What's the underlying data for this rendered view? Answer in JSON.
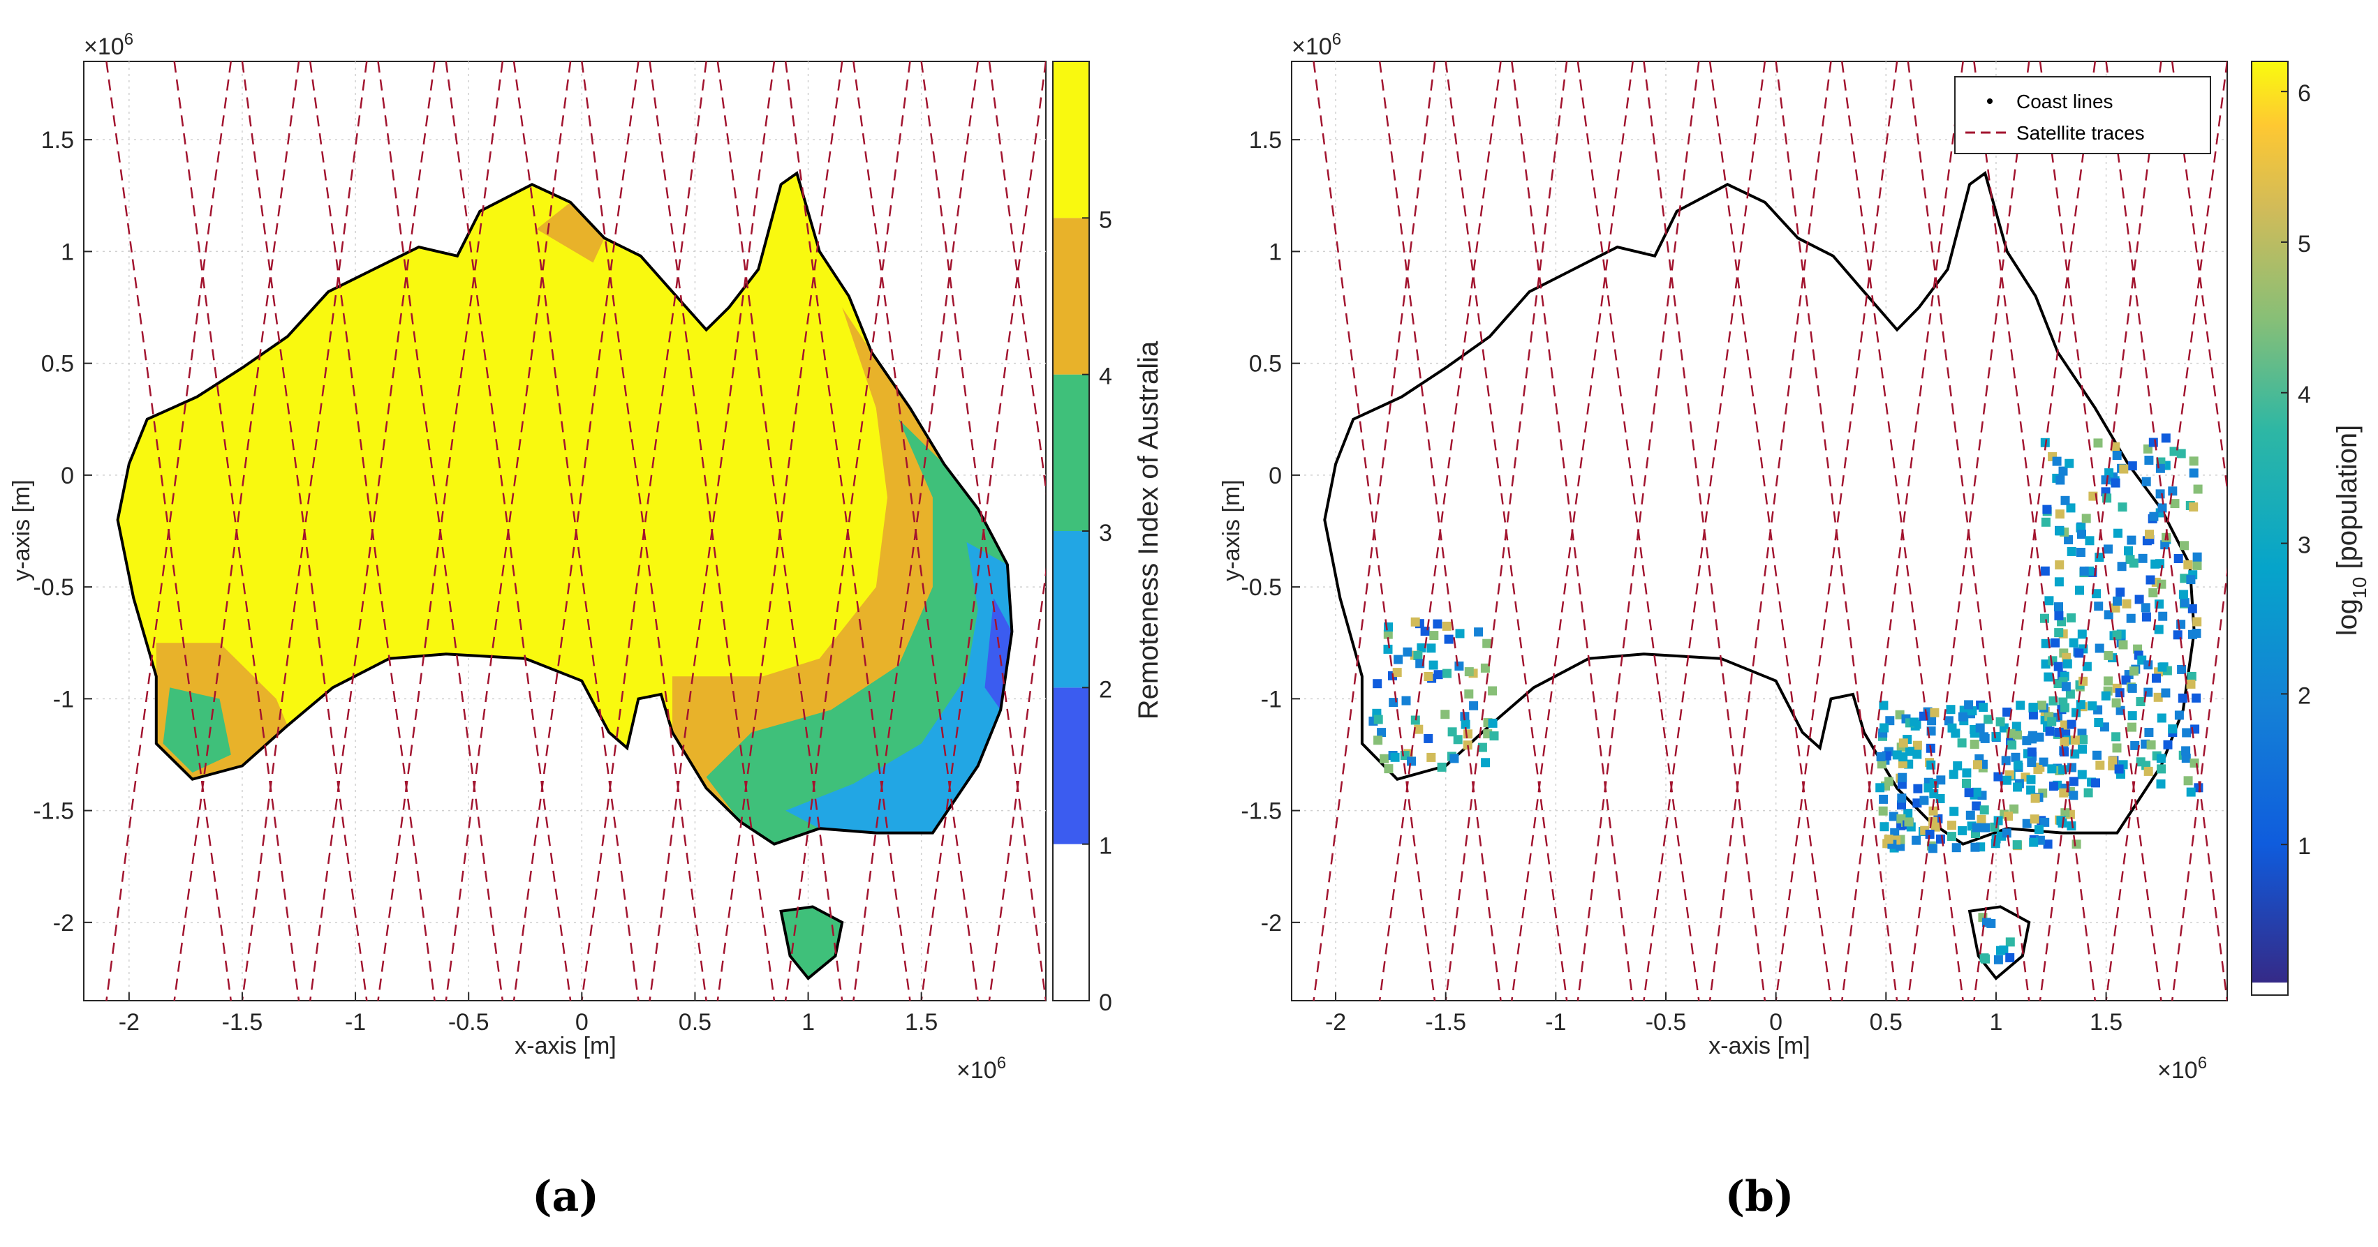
{
  "figure": {
    "panels": [
      "(a)",
      "(b)"
    ]
  },
  "chart_data": [
    {
      "type": "heatmap",
      "panel": "(a)",
      "xlabel": "x-axis [m]",
      "ylabel": "y-axis [m]",
      "x_exponent": "×10",
      "x_exponent_power": "6",
      "y_exponent": "×10",
      "y_exponent_power": "6",
      "xlim": [
        -2.2,
        2.05
      ],
      "ylim": [
        -2.35,
        1.85
      ],
      "x_ticks": [
        "-2",
        "-1.5",
        "-1",
        "-0.5",
        "0",
        "0.5",
        "1",
        "1.5"
      ],
      "y_ticks": [
        "1.5",
        "1",
        "0.5",
        "0",
        "-0.5",
        "-1",
        "-1.5",
        "-2"
      ],
      "grid": true,
      "colorbar": {
        "label": "Remoteness Index of Australia",
        "ticks": [
          "0",
          "1",
          "2",
          "3",
          "4",
          "5"
        ],
        "range": [
          0,
          6
        ],
        "colors": [
          "#ffffff",
          "#3b5cf0",
          "#22a6e4",
          "#3fc07a",
          "#e8b22a",
          "#f9f90f"
        ]
      }
    },
    {
      "type": "heatmap",
      "panel": "(b)",
      "xlabel": "x-axis [m]",
      "ylabel": "y-axis [m]",
      "x_exponent": "×10",
      "x_exponent_power": "6",
      "y_exponent": "×10",
      "y_exponent_power": "6",
      "xlim": [
        -2.2,
        2.05
      ],
      "ylim": [
        -2.35,
        1.85
      ],
      "x_ticks": [
        "-2",
        "-1.5",
        "-1",
        "-0.5",
        "0",
        "0.5",
        "1",
        "1.5"
      ],
      "y_ticks": [
        "1.5",
        "1",
        "0.5",
        "0",
        "-0.5",
        "-1",
        "-1.5",
        "-2"
      ],
      "grid": true,
      "legend": {
        "placement": "top-right",
        "entries": [
          {
            "label": "Coast lines",
            "marker": "point",
            "color": "#000000"
          },
          {
            "label": "Satellite traces",
            "marker": "dashed-line",
            "color": "#a2142f"
          }
        ]
      },
      "colorbar": {
        "label_main": "log",
        "label_sub": "10",
        "label_rest": " [population]",
        "ticks": [
          "1",
          "2",
          "3",
          "4",
          "5",
          "6"
        ],
        "range": [
          0,
          6.2
        ],
        "colormap": "parula"
      }
    }
  ]
}
